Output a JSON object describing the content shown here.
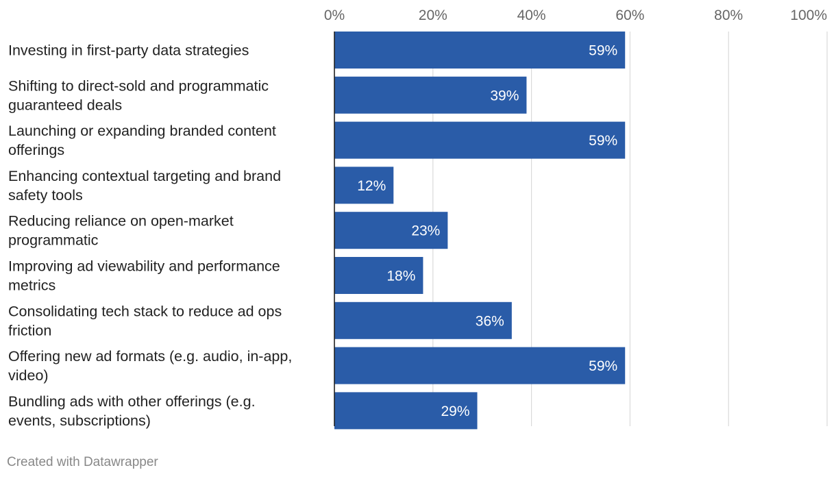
{
  "chart_data": {
    "type": "bar",
    "orientation": "horizontal",
    "categories": [
      "Investing in first-party data strategies",
      "Shifting to direct-sold and programmatic guaranteed deals",
      "Launching or expanding branded content offerings",
      "Enhancing contextual targeting and brand safety tools",
      "Reducing reliance on open-market programmatic",
      "Improving ad viewability and performance metrics",
      "Consolidating tech stack to reduce ad ops friction",
      "Offering new ad formats (e.g. audio, in-app, video)",
      "Bundling ads with other offerings (e.g. events, subscriptions)"
    ],
    "category_lines": [
      [
        "Investing in first-party data strategies"
      ],
      [
        "Shifting to direct-sold and programmatic",
        "guaranteed deals"
      ],
      [
        "Launching or expanding branded content",
        "offerings"
      ],
      [
        "Enhancing contextual targeting and brand",
        "safety tools"
      ],
      [
        "Reducing reliance on open-market",
        "programmatic"
      ],
      [
        "Improving ad viewability and performance",
        "metrics"
      ],
      [
        "Consolidating tech stack to reduce ad ops",
        "friction"
      ],
      [
        "Offering new ad formats (e.g. audio, in-app,",
        "video)"
      ],
      [
        "Bundling ads with other offerings (e.g.",
        "events, subscriptions)"
      ]
    ],
    "values": [
      59,
      39,
      59,
      12,
      23,
      18,
      36,
      59,
      29
    ],
    "value_labels": [
      "59%",
      "39%",
      "59%",
      "12%",
      "23%",
      "18%",
      "36%",
      "59%",
      "29%"
    ],
    "xlim": [
      0,
      100
    ],
    "ticks": [
      0,
      20,
      40,
      60,
      80,
      100
    ],
    "tick_labels": [
      "0%",
      "20%",
      "40%",
      "60%",
      "80%",
      "100%"
    ],
    "grid": true,
    "axis_position": "top",
    "bar_color": "#2a5ca8",
    "title": "",
    "xlabel": "",
    "ylabel": ""
  },
  "footer": {
    "credit": "Created with Datawrapper"
  }
}
